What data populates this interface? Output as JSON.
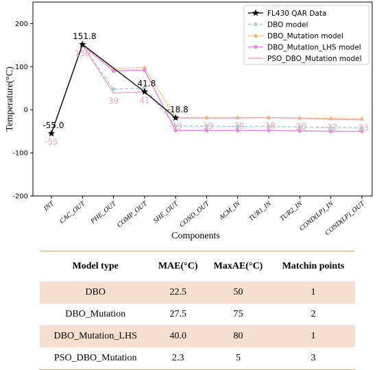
{
  "chart_data": {
    "type": "line",
    "xlabel": "Components",
    "ylabel": "Temperature(°C)",
    "ylim": [
      -200,
      250
    ],
    "yticks": [
      200,
      100,
      0,
      -100,
      -200
    ],
    "categories": [
      "INT",
      "CAC_OUT",
      "PHE_OUT",
      "COMP_OUT",
      "SHE_OUT",
      "COND_OUT",
      "ACM_IN",
      "TUR1_IN",
      "TUR2_IN",
      "COND(LP)_IN",
      "COND(LP)_OUT"
    ],
    "legend_position": "top-right",
    "series": [
      {
        "name": "FL430 QAR Data",
        "color": "#000000",
        "values": [
          -55.0,
          151.8,
          null,
          41.8,
          -18.8,
          null,
          null,
          null,
          null,
          null,
          null
        ]
      },
      {
        "name": "DBO model",
        "color": "#a7d0de",
        "values": [
          -55,
          150,
          48,
          50,
          -38,
          -38,
          -39,
          -38,
          -40,
          -41,
          -42
        ]
      },
      {
        "name": "DBO_Mutation model",
        "color": "#f5b35a",
        "values": [
          -55,
          152,
          95,
          98,
          -18,
          -18,
          -18,
          -18,
          -19,
          -20,
          -21
        ]
      },
      {
        "name": "DBO_Mutation_LHS model",
        "color": "#e58be6",
        "values": [
          -55,
          150,
          90,
          92,
          -48,
          -48,
          -48,
          -48,
          -49,
          -50,
          -50
        ]
      },
      {
        "name": "PSO_DBO_Mutation model",
        "color": "#f4a7b4",
        "values": [
          -55,
          150,
          39,
          41,
          -19,
          -19,
          -19,
          -18,
          -20,
          -22,
          -23
        ]
      }
    ],
    "annotations_black": [
      {
        "index": 0,
        "text": "-55.0"
      },
      {
        "index": 1,
        "text": "151.8"
      },
      {
        "index": 3,
        "text": "41.8"
      },
      {
        "index": 4,
        "text": "-18.8"
      }
    ],
    "annotations_pink": [
      {
        "index": 0,
        "text": "-55"
      },
      {
        "index": 1,
        "text": "150"
      },
      {
        "index": 2,
        "text": "39"
      },
      {
        "index": 3,
        "text": "41"
      },
      {
        "index": 4,
        "text": "-19"
      },
      {
        "index": 5,
        "text": "-19"
      },
      {
        "index": 6,
        "text": "-19"
      },
      {
        "index": 7,
        "text": "-18"
      },
      {
        "index": 8,
        "text": "-20"
      },
      {
        "index": 9,
        "text": "-22"
      },
      {
        "index": 10,
        "text": "-23"
      }
    ]
  },
  "table": {
    "headers": [
      "Model type",
      "MAE(°C)",
      "MaxAE(°C)",
      "Matchin points"
    ],
    "rows": [
      [
        "DBO",
        "22.5",
        "50",
        "1"
      ],
      [
        "DBO_Mutation",
        "27.5",
        "75",
        "2"
      ],
      [
        "DBO_Mutation_LHS",
        "40.0",
        "80",
        "1"
      ],
      [
        "PSO_DBO_Mutation",
        "2.3",
        "5",
        "3"
      ]
    ]
  }
}
